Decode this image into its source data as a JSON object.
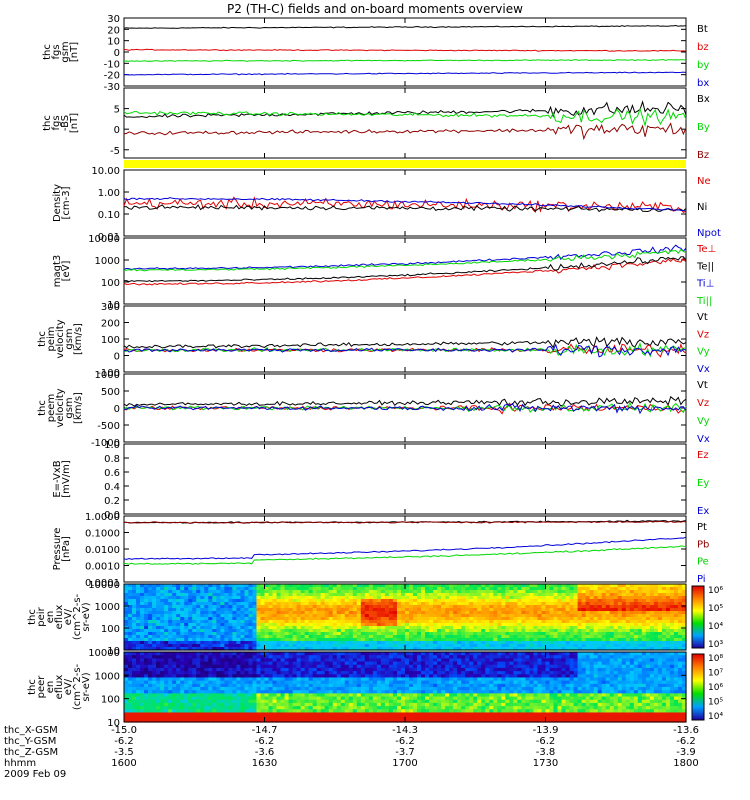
{
  "title": "P2 (TH-C) fields and on-board moments overview",
  "x_ticks": [
    "1600",
    "1630",
    "1700",
    "1730",
    "1800"
  ],
  "orbit_rows": [
    {
      "label": "thc_X-GSM",
      "values": [
        "-15.0",
        "-14.7",
        "-14.3",
        "-13.9",
        "-13.6"
      ]
    },
    {
      "label": "thc_Y-GSM",
      "values": [
        "-6.2",
        "-6.2",
        "-6.2",
        "-6.2",
        "-6.2"
      ]
    },
    {
      "label": "thc_Z-GSM",
      "values": [
        "-3.5",
        "-3.6",
        "-3.7",
        "-3.8",
        "-3.9"
      ]
    },
    {
      "label": "hhmm",
      "values": [
        "",
        "",
        "",
        "",
        ""
      ]
    }
  ],
  "date_label": "2009 Feb 09",
  "colors": {
    "black": "#000000",
    "red": "#e00000",
    "green": "#00d800",
    "blue": "#0000d8",
    "darkred": "#900000",
    "yellow": "#ffff00"
  },
  "chart_data": [
    {
      "id": "fgs",
      "type": "line",
      "ylabel": [
        "thc",
        "fgs",
        "gsm",
        "[nT]"
      ],
      "ylim": [
        -30,
        30
      ],
      "yticks": [
        "30",
        "20",
        "10",
        "0",
        "-10",
        "-20",
        "-30"
      ],
      "scale": "linear",
      "series": [
        {
          "name": "Bt",
          "color": "black",
          "start": 21,
          "end": 23
        },
        {
          "name": "bz",
          "color": "red",
          "start": 2,
          "end": 1
        },
        {
          "name": "by",
          "color": "green",
          "start": -8,
          "end": -7
        },
        {
          "name": "bx",
          "color": "blue",
          "start": -20,
          "end": -18
        }
      ]
    },
    {
      "id": "fgs_dsl",
      "type": "line",
      "ylabel": [
        "thc",
        "fgs",
        "-BS",
        "[nT]"
      ],
      "ylim": [
        -7,
        10
      ],
      "yticks": [
        "5",
        "0",
        "-5"
      ],
      "scale": "linear",
      "series": [
        {
          "name": "Bx",
          "color": "black",
          "start": 3,
          "end": 5
        },
        {
          "name": "By",
          "color": "green",
          "start": 4,
          "end": 3
        },
        {
          "name": "Bz",
          "color": "darkred",
          "start": -1,
          "end": 0
        }
      ]
    },
    {
      "id": "density",
      "type": "line",
      "ylabel": [
        "Density",
        "[cm-3]"
      ],
      "ylim": [
        0.01,
        10
      ],
      "yticks": [
        "10.00",
        "1.00",
        "0.10",
        "0.01"
      ],
      "scale": "log",
      "series": [
        {
          "name": "Ne",
          "color": "red",
          "start": 0.3,
          "end": 0.2
        },
        {
          "name": "Ni",
          "color": "black",
          "start": 0.2,
          "end": 0.15
        },
        {
          "name": "Npot",
          "color": "blue",
          "start": 0.5,
          "end": 0.15
        }
      ]
    },
    {
      "id": "temp",
      "type": "line",
      "ylabel": [
        "magt3",
        "[eV]"
      ],
      "ylim": [
        10,
        10000
      ],
      "yticks": [
        "10000",
        "1000",
        "100",
        "10"
      ],
      "scale": "log",
      "series": [
        {
          "name": "Te⊥",
          "color": "red",
          "start": 80,
          "end": 1000
        },
        {
          "name": "Te||",
          "color": "black",
          "start": 110,
          "end": 1300
        },
        {
          "name": "Ti⊥",
          "color": "blue",
          "start": 400,
          "end": 3500
        },
        {
          "name": "Ti||",
          "color": "green",
          "start": 350,
          "end": 2500
        }
      ]
    },
    {
      "id": "peim",
      "type": "line",
      "ylabel": [
        "thc",
        "peim",
        "velocity",
        "gsm",
        "[km/s]"
      ],
      "ylim": [
        -150,
        300
      ],
      "yticks": [
        "300",
        "200",
        "100",
        "0",
        "-100"
      ],
      "scale": "linear",
      "series": [
        {
          "name": "Vt",
          "color": "black",
          "start": 20,
          "end": 60
        },
        {
          "name": "Vz",
          "color": "red",
          "start": 0,
          "end": 0
        },
        {
          "name": "Vy",
          "color": "green",
          "start": 0,
          "end": 0
        },
        {
          "name": "Vx",
          "color": "blue",
          "start": 0,
          "end": 0
        }
      ]
    },
    {
      "id": "peem",
      "type": "line",
      "ylabel": [
        "thc",
        "peem",
        "velocity",
        "gsm",
        "[km/s]"
      ],
      "ylim": [
        -1000,
        1000
      ],
      "yticks": [
        "1000",
        "500",
        "0",
        "-500",
        "-1000"
      ],
      "scale": "linear",
      "series": [
        {
          "name": "Vt",
          "color": "black",
          "start": 100,
          "end": 200
        },
        {
          "name": "Vz",
          "color": "red",
          "start": 0,
          "end": 0
        },
        {
          "name": "Vy",
          "color": "green",
          "start": 0,
          "end": 0
        },
        {
          "name": "Vx",
          "color": "blue",
          "start": 0,
          "end": 0
        }
      ]
    },
    {
      "id": "efield",
      "type": "line",
      "ylabel": [
        "E=-VxB",
        "[mV/m]"
      ],
      "ylim": [
        0,
        1
      ],
      "yticks": [
        "1.0",
        "0.8",
        "0.6",
        "0.4",
        "0.2",
        "0.0"
      ],
      "scale": "linear",
      "series": [
        {
          "name": "Ez",
          "color": "red"
        },
        {
          "name": "Ey",
          "color": "green"
        },
        {
          "name": "Ex",
          "color": "blue"
        }
      ]
    },
    {
      "id": "pressure",
      "type": "line",
      "ylabel": [
        "Pressure",
        "[nPa]"
      ],
      "ylim": [
        0.0001,
        1
      ],
      "yticks": [
        "1.0000",
        "0.1000",
        "0.0100",
        "0.0010",
        "0.0001"
      ],
      "scale": "log",
      "series": [
        {
          "name": "Pt",
          "color": "black",
          "start": 0.4,
          "end": 0.5
        },
        {
          "name": "Pb",
          "color": "darkred",
          "start": 0.4,
          "end": 0.45
        },
        {
          "name": "Pe",
          "color": "green",
          "start": 0.002,
          "end": 0.015
        },
        {
          "name": "Pi",
          "color": "blue",
          "start": 0.004,
          "end": 0.05
        }
      ]
    },
    {
      "id": "peir",
      "type": "heatmap",
      "ylabel": [
        "thc",
        "peir",
        "en",
        "eflux",
        "eV/",
        "(cm^2-s-",
        "sr-eV)"
      ],
      "ylim": [
        10,
        20000
      ],
      "yticks": [
        "10000",
        "1000",
        "100",
        "10"
      ],
      "scale": "log",
      "colorbar_ticks": [
        "10⁶",
        "10⁵",
        "10⁴",
        "10³"
      ]
    },
    {
      "id": "peer",
      "type": "heatmap",
      "ylabel": [
        "thc",
        "peer",
        "en",
        "eflux",
        "eV/",
        "(cm^2-s-",
        "sr-eV)"
      ],
      "ylim": [
        10,
        20000
      ],
      "yticks": [
        "10000",
        "1000",
        "100",
        "10"
      ],
      "scale": "log",
      "colorbar_ticks": [
        "10⁸",
        "10⁷",
        "10⁶",
        "10⁵",
        "10⁴"
      ]
    }
  ]
}
